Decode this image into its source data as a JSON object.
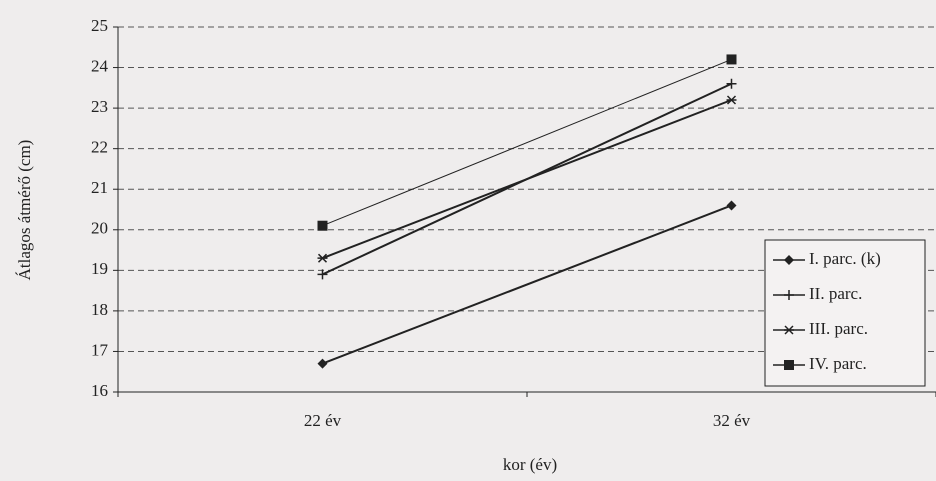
{
  "chart_data": {
    "type": "line",
    "x_label": "kor (év)",
    "y_label": "Átlagos átmérő (cm)",
    "categories": [
      "22 év",
      "32 év"
    ],
    "series": [
      {
        "name": "I. parc. (k)",
        "color": "#222222",
        "marker": "diamond",
        "values": [
          16.7,
          20.6
        ]
      },
      {
        "name": "II. parc.",
        "color": "#222222",
        "marker": "plus",
        "values": [
          18.9,
          23.6
        ]
      },
      {
        "name": "III. parc.",
        "color": "#222222",
        "marker": "star",
        "values": [
          19.3,
          23.2
        ]
      },
      {
        "name": "IV. parc.",
        "color": "#222222",
        "marker": "square",
        "values": [
          20.1,
          24.2
        ]
      }
    ],
    "ylim": [
      16,
      25
    ],
    "yticks": [
      16,
      17,
      18,
      19,
      20,
      21,
      22,
      23,
      24,
      25
    ],
    "grid": true,
    "legend": "right"
  }
}
